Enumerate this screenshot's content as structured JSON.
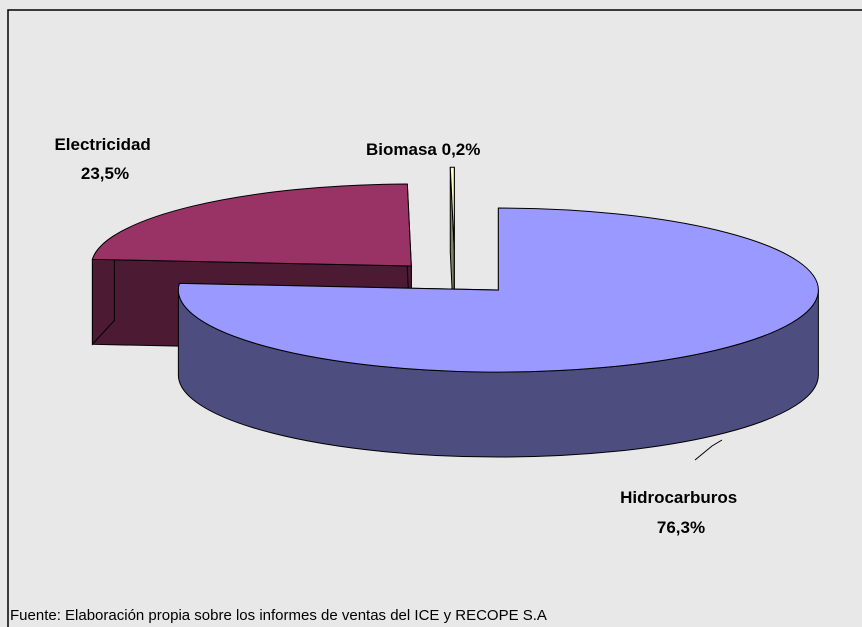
{
  "chart_data": {
    "type": "pie3d",
    "categories": [
      "Hidrocarburos",
      "Electricidad",
      "Biomasa"
    ],
    "values": [
      76.3,
      23.5,
      0.2
    ],
    "value_labels": [
      "76,3%",
      "23,5%",
      "0,2%"
    ],
    "colors": [
      "#9999ff",
      "#993366",
      "#ffffcc"
    ],
    "source": "Fuente: Elaboración propia sobre los informes de ventas del ICE y RECOPE  S.A"
  }
}
